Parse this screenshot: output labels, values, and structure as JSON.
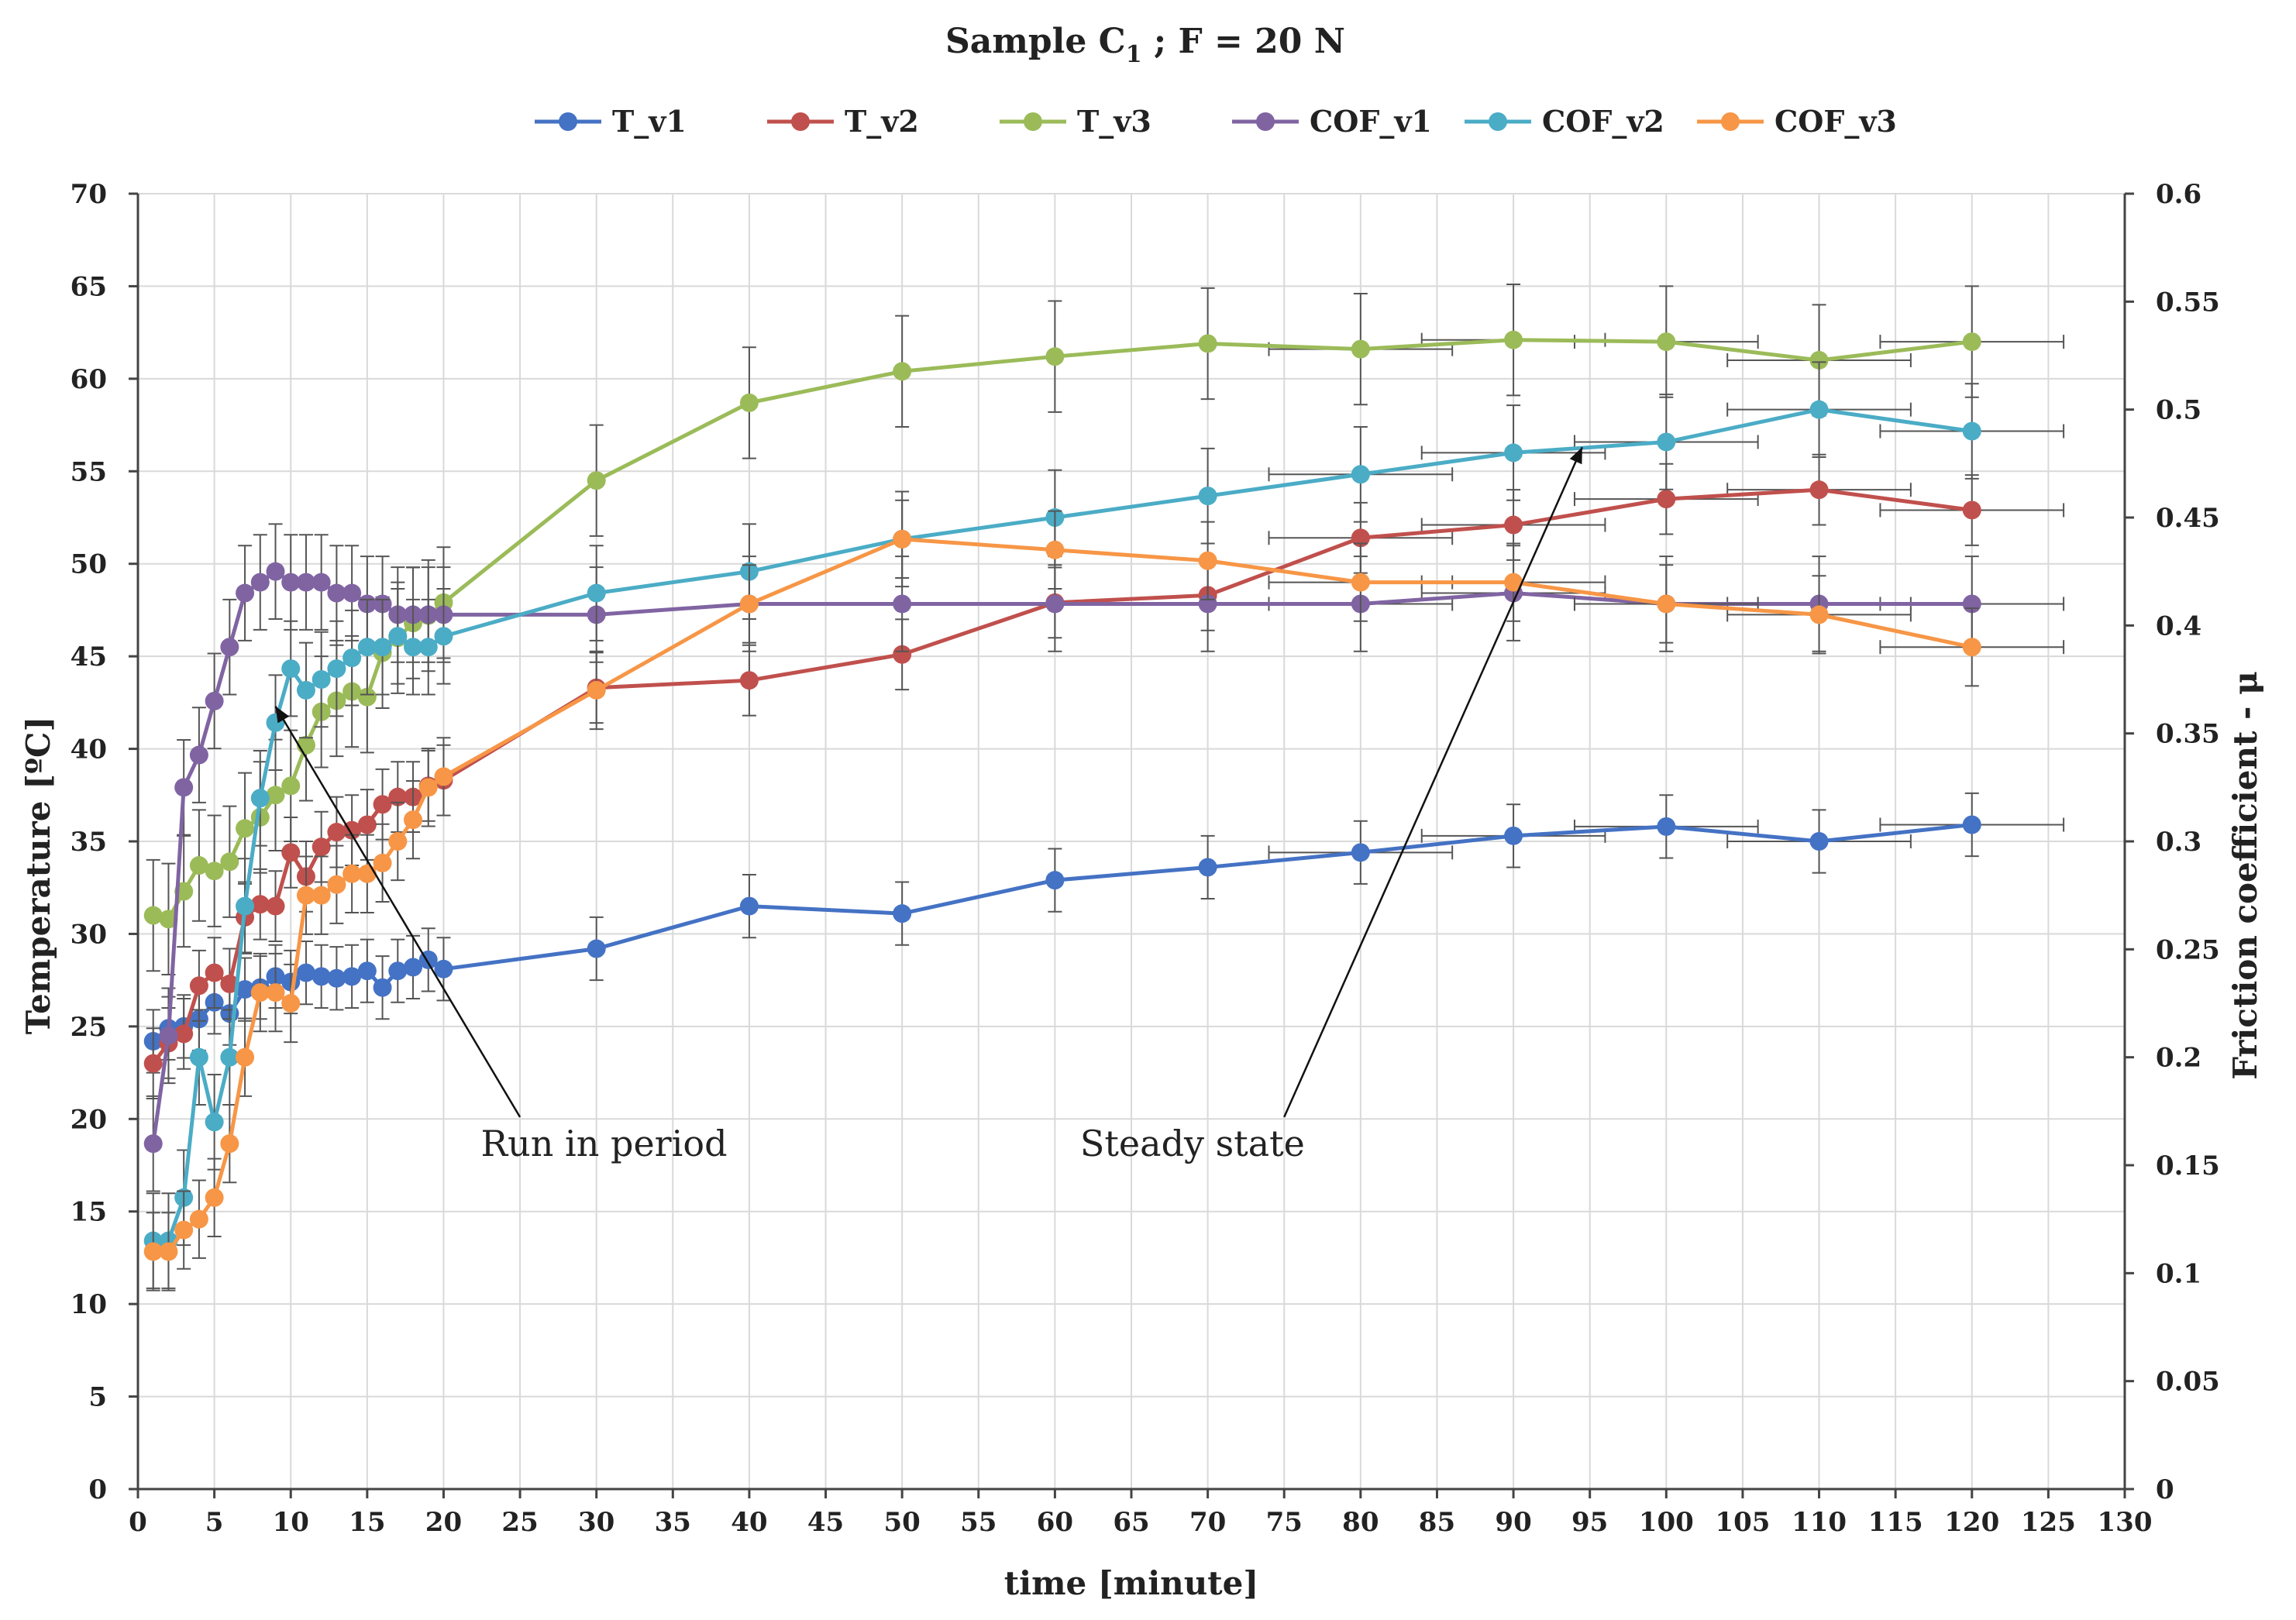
{
  "chart_data": {
    "type": "line",
    "title_main": "Sample C",
    "title_sub": "1",
    "title_rest": " ;  F = 20 N",
    "xlabel": "time [minute]",
    "ylabel": "Temperature [ºC]",
    "y2label": "Friction coefficient - μ",
    "xlim": [
      0,
      130
    ],
    "ylim": [
      0,
      70
    ],
    "y2lim": [
      0,
      0.6
    ],
    "xticks": [
      0,
      5,
      10,
      15,
      20,
      25,
      30,
      35,
      40,
      45,
      50,
      55,
      60,
      65,
      70,
      75,
      80,
      85,
      90,
      95,
      100,
      105,
      110,
      115,
      120,
      125,
      130
    ],
    "yticks": [
      0,
      5,
      10,
      15,
      20,
      25,
      30,
      35,
      40,
      45,
      50,
      55,
      60,
      65,
      70
    ],
    "y2ticks": [
      "0",
      "0.05",
      "0.1",
      "0.15",
      "0.2",
      "0.25",
      "0.3",
      "0.35",
      "0.4",
      "0.45",
      "0.5",
      "0.55",
      "0.6"
    ],
    "grid": true,
    "legend_position": "top",
    "series": [
      {
        "name": "T_v1",
        "axis": "left",
        "color": "#4472C4",
        "err": 1.7,
        "xerr": 6,
        "x": [
          1,
          2,
          3,
          4,
          5,
          6,
          7,
          8,
          9,
          10,
          11,
          12,
          13,
          14,
          15,
          16,
          17,
          18,
          19,
          20,
          30,
          40,
          50,
          60,
          70,
          80,
          90,
          100,
          110,
          120
        ],
        "y": [
          24.2,
          24.9,
          25.0,
          25.4,
          26.3,
          25.7,
          27.0,
          27.1,
          27.7,
          27.4,
          27.9,
          27.7,
          27.6,
          27.7,
          28.0,
          27.1,
          28.0,
          28.2,
          28.6,
          28.1,
          29.2,
          31.5,
          31.1,
          32.9,
          33.6,
          34.4,
          35.3,
          35.8,
          35.0,
          35.9
        ]
      },
      {
        "name": "T_v2",
        "axis": "left",
        "color": "#C0504D",
        "err": 1.9,
        "xerr": 6,
        "x": [
          1,
          2,
          3,
          4,
          5,
          6,
          7,
          8,
          9,
          10,
          11,
          12,
          13,
          14,
          15,
          16,
          17,
          18,
          19,
          20,
          30,
          40,
          50,
          60,
          70,
          80,
          90,
          100,
          110,
          120
        ],
        "y": [
          23.0,
          24.1,
          24.6,
          27.2,
          27.9,
          27.3,
          30.9,
          31.6,
          31.5,
          34.4,
          33.1,
          34.7,
          35.5,
          35.6,
          35.9,
          37.0,
          37.4,
          37.4,
          38.0,
          38.3,
          43.3,
          43.7,
          45.1,
          47.9,
          48.3,
          51.4,
          52.1,
          53.5,
          54.0,
          52.9
        ]
      },
      {
        "name": "T_v3",
        "axis": "left",
        "color": "#9BBB59",
        "err": 3.0,
        "xerr": 6,
        "x": [
          1,
          2,
          3,
          4,
          5,
          6,
          7,
          8,
          9,
          10,
          11,
          12,
          13,
          14,
          15,
          16,
          17,
          18,
          19,
          20,
          30,
          40,
          50,
          60,
          70,
          80,
          90,
          100,
          110,
          120
        ],
        "y": [
          31.0,
          30.8,
          32.3,
          33.7,
          33.4,
          33.9,
          35.7,
          36.3,
          37.5,
          38.0,
          40.2,
          42.0,
          42.6,
          43.1,
          42.8,
          45.2,
          46.0,
          46.8,
          47.2,
          47.9,
          54.5,
          58.7,
          60.4,
          61.2,
          61.9,
          61.6,
          62.1,
          62.0,
          61.0,
          62.0
        ]
      },
      {
        "name": "COF_v1",
        "axis": "right",
        "color": "#8064A2",
        "err": 0.022,
        "xerr": 6,
        "x": [
          1,
          2,
          3,
          4,
          5,
          6,
          7,
          8,
          9,
          10,
          11,
          12,
          13,
          14,
          15,
          16,
          17,
          18,
          19,
          20,
          30,
          40,
          50,
          60,
          70,
          80,
          90,
          100,
          110,
          120
        ],
        "y": [
          0.16,
          0.21,
          0.325,
          0.34,
          0.365,
          0.39,
          0.415,
          0.42,
          0.425,
          0.42,
          0.42,
          0.42,
          0.415,
          0.415,
          0.41,
          0.41,
          0.405,
          0.405,
          0.405,
          0.405,
          0.405,
          0.41,
          0.41,
          0.41,
          0.41,
          0.41,
          0.415,
          0.41,
          0.41,
          0.41
        ]
      },
      {
        "name": "COF_v2",
        "axis": "right",
        "color": "#4BACC6",
        "err": 0.022,
        "xerr": 6,
        "x": [
          1,
          2,
          3,
          4,
          5,
          6,
          7,
          8,
          9,
          10,
          11,
          12,
          13,
          14,
          15,
          16,
          17,
          18,
          19,
          20,
          30,
          40,
          50,
          60,
          70,
          80,
          90,
          100,
          110,
          120
        ],
        "y": [
          0.115,
          0.115,
          0.135,
          0.2,
          0.17,
          0.2,
          0.27,
          0.32,
          0.355,
          0.38,
          0.37,
          0.375,
          0.38,
          0.385,
          0.39,
          0.39,
          0.395,
          0.39,
          0.39,
          0.395,
          0.415,
          0.425,
          0.44,
          0.45,
          0.46,
          0.47,
          0.48,
          0.485,
          0.5,
          0.49
        ]
      },
      {
        "name": "COF_v3",
        "axis": "right",
        "color": "#F79646",
        "err": 0.018,
        "xerr": 6,
        "x": [
          1,
          2,
          3,
          4,
          5,
          6,
          7,
          8,
          9,
          10,
          11,
          12,
          13,
          14,
          15,
          16,
          17,
          18,
          19,
          20,
          30,
          40,
          50,
          60,
          70,
          80,
          90,
          100,
          110,
          120
        ],
        "y": [
          0.11,
          0.11,
          0.12,
          0.125,
          0.135,
          0.16,
          0.2,
          0.23,
          0.23,
          0.225,
          0.275,
          0.275,
          0.28,
          0.285,
          0.285,
          0.29,
          0.3,
          0.31,
          0.325,
          0.33,
          0.37,
          0.41,
          0.44,
          0.435,
          0.43,
          0.42,
          0.42,
          0.41,
          0.405,
          0.39
        ]
      }
    ],
    "annotations": [
      {
        "text": "Run in period",
        "x": 30.5,
        "y": 18
      },
      {
        "text": "Steady state",
        "x": 69,
        "y": 18
      }
    ],
    "arrows": [
      {
        "from": [
          25,
          20.1
        ],
        "to": [
          9,
          42.3
        ]
      },
      {
        "from": [
          75,
          20.1
        ],
        "to": [
          94.5,
          56.3
        ]
      }
    ]
  }
}
